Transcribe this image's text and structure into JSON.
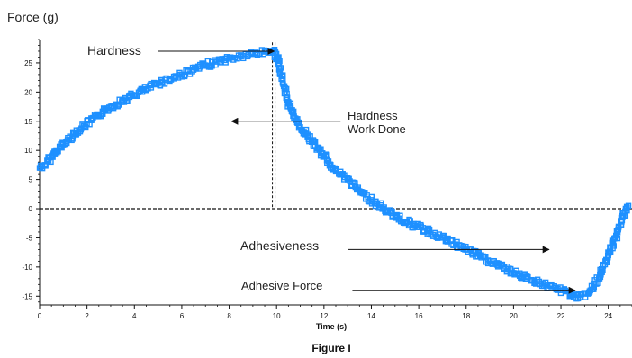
{
  "chart_data": {
    "type": "scatter",
    "title": "",
    "caption": "Figure I",
    "ylabel": "Force (g)",
    "xlabel": "Time (s)",
    "xlim": [
      0,
      25
    ],
    "ylim": [
      -16.5,
      29
    ],
    "x_ticks": [
      0,
      2,
      4,
      6,
      8,
      10,
      12,
      14,
      16,
      18,
      20,
      22,
      24
    ],
    "y_ticks": [
      -15,
      -10,
      -5,
      0,
      5,
      10,
      15,
      20,
      25
    ],
    "grid": false,
    "marker_color": "#1e90ff",
    "series": [
      {
        "name": "",
        "points": [
          [
            0.0,
            7.0
          ],
          [
            0.25,
            7.5
          ],
          [
            0.5,
            9.0
          ],
          [
            0.75,
            10.0
          ],
          [
            1.0,
            11.0
          ],
          [
            1.5,
            13.0
          ],
          [
            2.0,
            14.5
          ],
          [
            2.5,
            16.0
          ],
          [
            3.0,
            17.5
          ],
          [
            3.5,
            18.5
          ],
          [
            4.0,
            19.5
          ],
          [
            4.5,
            20.5
          ],
          [
            5.0,
            21.5
          ],
          [
            5.5,
            22.2
          ],
          [
            6.0,
            23.0
          ],
          [
            6.5,
            23.8
          ],
          [
            7.0,
            24.6
          ],
          [
            7.5,
            25.2
          ],
          [
            8.0,
            25.7
          ],
          [
            8.5,
            26.1
          ],
          [
            9.0,
            26.5
          ],
          [
            9.5,
            26.9
          ],
          [
            9.9,
            27.2
          ],
          [
            10.1,
            25.0
          ],
          [
            10.3,
            21.0
          ],
          [
            10.5,
            18.0
          ],
          [
            10.8,
            15.5
          ],
          [
            11.0,
            14.0
          ],
          [
            11.5,
            11.5
          ],
          [
            12.0,
            9.0
          ],
          [
            12.5,
            6.5
          ],
          [
            13.0,
            5.0
          ],
          [
            13.5,
            3.0
          ],
          [
            14.0,
            1.5
          ],
          [
            14.5,
            0.0
          ],
          [
            15.0,
            -1.2
          ],
          [
            15.5,
            -2.3
          ],
          [
            16.0,
            -3.2
          ],
          [
            17.0,
            -5.0
          ],
          [
            18.0,
            -7.0
          ],
          [
            19.0,
            -9.0
          ],
          [
            20.0,
            -11.0
          ],
          [
            21.0,
            -12.5
          ],
          [
            22.0,
            -14.0
          ],
          [
            22.5,
            -14.8
          ],
          [
            22.8,
            -15.2
          ],
          [
            23.2,
            -14.5
          ],
          [
            23.6,
            -12.0
          ],
          [
            24.0,
            -8.0
          ],
          [
            24.3,
            -5.0
          ],
          [
            24.6,
            -1.5
          ],
          [
            24.85,
            0.5
          ]
        ]
      }
    ],
    "reference_lines": [
      {
        "orientation": "horizontal",
        "value": 0,
        "style": "dashed"
      },
      {
        "orientation": "vertical",
        "value": 9.9,
        "style": "dashed"
      }
    ],
    "annotations": [
      {
        "text": "Hardness",
        "arrow_from": [
          5.0,
          27.0
        ],
        "arrow_to": [
          9.9,
          27.0
        ]
      },
      {
        "text": "Hardness\nWork Done",
        "arrow_from": [
          12.7,
          15.0
        ],
        "arrow_to": [
          8.1,
          15.0
        ]
      },
      {
        "text": "Adhesiveness",
        "arrow_from": [
          13.0,
          -7.0
        ],
        "arrow_to": [
          21.5,
          -7.0
        ]
      },
      {
        "text": "Adhesive Force",
        "arrow_from": [
          13.2,
          -14.0
        ],
        "arrow_to": [
          22.6,
          -14.0
        ]
      }
    ]
  }
}
